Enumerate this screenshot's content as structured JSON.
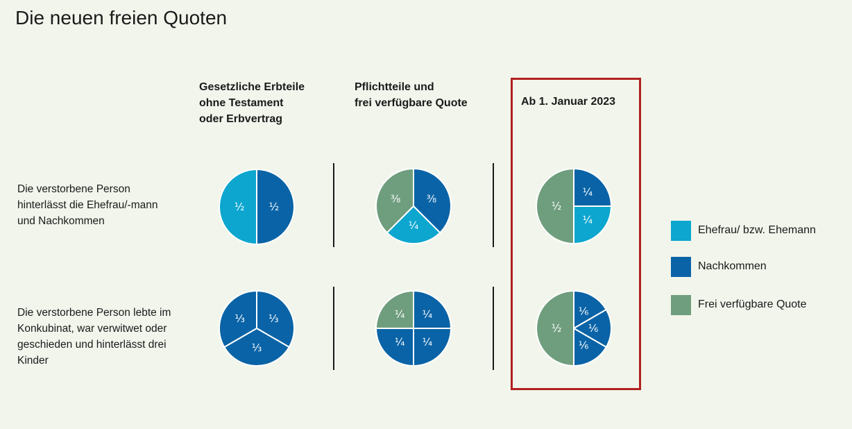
{
  "title": "Die neuen freien Quoten",
  "colors": {
    "ehefrau": "#0ca6cf",
    "nachkommen": "#0a63a6",
    "frei": "#6f9e7e",
    "highlight": "#b0201e"
  },
  "columns": [
    {
      "lines": [
        "Gesetzliche Erbteile",
        "ohne Testament",
        "oder Erbvertrag"
      ]
    },
    {
      "lines": [
        "Pflichtteile und",
        "frei verfügbare Quote"
      ]
    },
    {
      "lines": [
        "Ab 1. Januar 2023"
      ]
    }
  ],
  "rows": [
    {
      "lines": [
        "Die verstorbene Person",
        "hinterlässt die Ehefrau/-mann",
        "und Nachkommen"
      ]
    },
    {
      "lines": [
        "Die verstorbene Person lebte im",
        "Konkubinat, war verwitwet oder",
        "geschieden und hinterlässt drei",
        "Kinder"
      ]
    }
  ],
  "legend": [
    {
      "key": "ehefrau",
      "label": "Ehefrau/ bzw. Ehemann"
    },
    {
      "key": "nachkommen",
      "label": "Nachkommen"
    },
    {
      "key": "frei",
      "label": "Frei verfügbare Quote"
    }
  ],
  "chart_data": {
    "type": "pie",
    "title": "Die neuen freien Quoten",
    "highlighted_column": 2,
    "pies": [
      {
        "row": 0,
        "col": 0,
        "slices": [
          {
            "category": "nachkommen",
            "value": 0.5,
            "label": "½"
          },
          {
            "category": "ehefrau",
            "value": 0.5,
            "label": "½"
          }
        ]
      },
      {
        "row": 0,
        "col": 1,
        "slices": [
          {
            "category": "nachkommen",
            "value": 0.375,
            "label": "⅜"
          },
          {
            "category": "ehefrau",
            "value": 0.25,
            "label": "¼"
          },
          {
            "category": "frei",
            "value": 0.375,
            "label": "⅜"
          }
        ]
      },
      {
        "row": 0,
        "col": 2,
        "slices": [
          {
            "category": "nachkommen",
            "value": 0.25,
            "label": "¼"
          },
          {
            "category": "ehefrau",
            "value": 0.25,
            "label": "¼"
          },
          {
            "category": "frei",
            "value": 0.5,
            "label": "½"
          }
        ]
      },
      {
        "row": 1,
        "col": 0,
        "slices": [
          {
            "category": "nachkommen",
            "value": 0.3333,
            "label": "⅓"
          },
          {
            "category": "nachkommen",
            "value": 0.3333,
            "label": "⅓"
          },
          {
            "category": "nachkommen",
            "value": 0.3334,
            "label": "⅓"
          }
        ]
      },
      {
        "row": 1,
        "col": 1,
        "slices": [
          {
            "category": "nachkommen",
            "value": 0.25,
            "label": "¼"
          },
          {
            "category": "nachkommen",
            "value": 0.25,
            "label": "¼"
          },
          {
            "category": "nachkommen",
            "value": 0.25,
            "label": "¼"
          },
          {
            "category": "frei",
            "value": 0.25,
            "label": "¼"
          }
        ]
      },
      {
        "row": 1,
        "col": 2,
        "slices": [
          {
            "category": "nachkommen",
            "value": 0.1667,
            "label": "⅙"
          },
          {
            "category": "nachkommen",
            "value": 0.1667,
            "label": "⅙"
          },
          {
            "category": "nachkommen",
            "value": 0.1666,
            "label": "⅙"
          },
          {
            "category": "frei",
            "value": 0.5,
            "label": "½"
          }
        ]
      }
    ]
  }
}
